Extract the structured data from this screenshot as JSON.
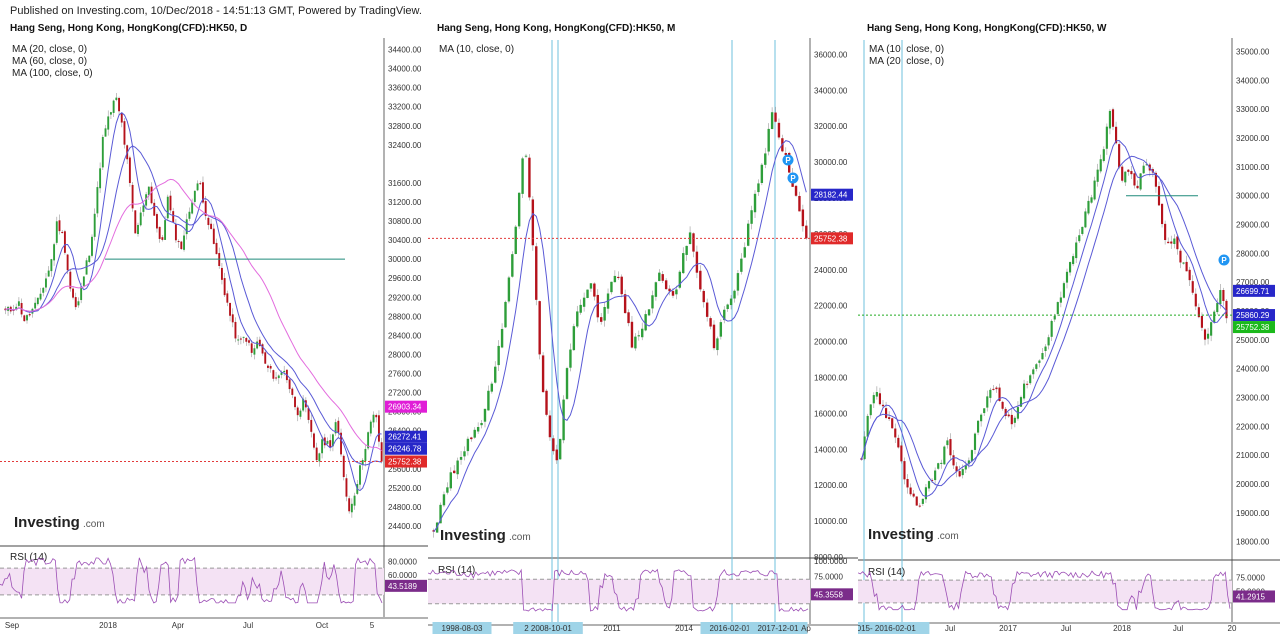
{
  "published": "Published on Investing.com, 10/Dec/2018 - 14:51:13 GMT, Powered by TradingView.",
  "brand": {
    "name": "Investing",
    "suffix": ".com"
  },
  "colors": {
    "up": "#2e9e3a",
    "down": "#b5121b",
    "ma_blue": "#5a5ad6",
    "ma_pink": "#e36cde",
    "rsi": "#9c4fb5",
    "rsi_band": "#f4e2f4",
    "price_line": "#e23a3a",
    "hline": "#1f8a7a",
    "vline": "#6fc0dc"
  },
  "chart_data": [
    {
      "type": "candlestick",
      "title": "Hang Seng, Hong Kong, HongKong(CFD):HK50, D",
      "legend": [
        "MA (20, close, 0)",
        "MA (60, close, 0)",
        "MA (100, close, 0)"
      ],
      "ylim": [
        24000,
        34600
      ],
      "yticks": [
        "34400.00",
        "34000.00",
        "33600.00",
        "33200.00",
        "32800.00",
        "32400.00",
        "31600.00",
        "31200.00",
        "30800.00",
        "30400.00",
        "30000.00",
        "29600.00",
        "29200.00",
        "28800.00",
        "28400.00",
        "28000.00",
        "27600.00",
        "27200.00",
        "26800.00",
        "26400.00",
        "25600.00",
        "25200.00",
        "24800.00",
        "24400.00"
      ],
      "xticks": [
        "Sep",
        "2018",
        "Apr",
        "Jul",
        "Oct",
        "5"
      ],
      "close_path": [
        28900,
        28950,
        29100,
        28700,
        28900,
        29100,
        29500,
        29900,
        30800,
        30400,
        29400,
        28900,
        29600,
        30200,
        31200,
        32500,
        33000,
        33400,
        32800,
        31800,
        30500,
        31000,
        31600,
        30900,
        30200,
        31300,
        30600,
        30200,
        30800,
        31400,
        31600,
        30900,
        30400,
        29800,
        29200,
        28600,
        28200,
        28400,
        28000,
        28300,
        27800,
        27600,
        27500,
        27700,
        27200,
        26800,
        27000,
        26400,
        25800,
        26200,
        26100,
        26600,
        25600,
        24700,
        25200,
        25800,
        26400,
        26800,
        25752
      ],
      "hline": 30000,
      "price_labels": [
        {
          "value": 26903.34,
          "label": "26903.34",
          "color": "#e01ed7"
        },
        {
          "value": 26272.41,
          "label": "26272.41",
          "color": "#2727c9"
        },
        {
          "value": 26246.78,
          "label": "26246.78",
          "color": "#2727c9"
        },
        {
          "value": 25752.38,
          "label": "25752.38",
          "color": "#e02a2a"
        }
      ],
      "rsi": {
        "label": "RSI (14)",
        "value": "43.5189",
        "upper": 70,
        "lower": 30,
        "ticks": [
          "80.0000",
          "60.0000"
        ]
      }
    },
    {
      "type": "candlestick",
      "title": "Hang Seng, Hong Kong, HongKong(CFD):HK50, M",
      "legend": [
        "MA (10, close, 0)"
      ],
      "ylim": [
        8000,
        36800
      ],
      "yticks": [
        "36000.00",
        "34000.00",
        "32000.00",
        "30000.00",
        "28000.00",
        "26000.00",
        "24000.00",
        "22000.00",
        "20000.00",
        "18000.00",
        "16000.00",
        "14000.00",
        "12000.00",
        "10000.00",
        "8000.00"
      ],
      "xticks": [
        "1998-08-03",
        "2 2008-10-01",
        "2011",
        "2014",
        "2016-02-01",
        "2017-12-01",
        "Ap"
      ],
      "close_path": [
        9500,
        11000,
        12500,
        13200,
        14500,
        15000,
        15800,
        17800,
        20000,
        23000,
        27000,
        31500,
        25000,
        18000,
        14500,
        13500,
        18000,
        21000,
        22500,
        23500,
        21000,
        22500,
        24000,
        22000,
        19800,
        20500,
        22000,
        23800,
        23000,
        22500,
        24500,
        26000,
        23500,
        21500,
        19500,
        21800,
        22500,
        24000,
        26500,
        28500,
        30500,
        33000,
        31000,
        29500,
        27500,
        25752
      ],
      "hline": 25752,
      "price_labels": [
        {
          "value": 28182.44,
          "label": "28182.44",
          "color": "#2727c9"
        },
        {
          "value": 25752.38,
          "label": "25752.38",
          "color": "#e02a2a"
        }
      ],
      "rsi": {
        "label": "RSI (14)",
        "value": "45.3558",
        "upper": 70,
        "lower": 30,
        "ticks": [
          "100.0000",
          "75.0000",
          "50.0000"
        ]
      }
    },
    {
      "type": "candlestick",
      "title": "Hang Seng, Hong Kong, HongKong(CFD):HK50, W",
      "legend": [
        "MA (10, close, 0)",
        "MA (20, close, 0)"
      ],
      "ylim": [
        17400,
        35400
      ],
      "yticks": [
        "35000.00",
        "34000.00",
        "33000.00",
        "32000.00",
        "31000.00",
        "30000.00",
        "29000.00",
        "28000.00",
        "27000.00",
        "26000.00",
        "25000.00",
        "24000.00",
        "23000.00",
        "22000.00",
        "21000.00",
        "20000.00",
        "19000.00",
        "18000.00"
      ],
      "xticks": [
        "2015- 2016-02-01",
        "Jul",
        "2017",
        "Jul",
        "2018",
        "Jul",
        "20"
      ],
      "close_path": [
        21000,
        22500,
        23200,
        22800,
        22300,
        21800,
        21000,
        19800,
        19500,
        19200,
        19800,
        20300,
        20700,
        21500,
        20800,
        20200,
        20500,
        21300,
        22200,
        22800,
        23600,
        23000,
        22500,
        22000,
        22800,
        23400,
        23700,
        24100,
        24600,
        25500,
        26200,
        26900,
        27700,
        28400,
        29100,
        29800,
        30600,
        31500,
        33000,
        31800,
        30500,
        31000,
        30200,
        30800,
        31200,
        30500,
        29000,
        28200,
        28500,
        27800,
        27200,
        26400,
        25500,
        25000,
        25800,
        26700,
        25752
      ],
      "hline": 25860,
      "price_labels": [
        {
          "value": 26699.71,
          "label": "26699.71",
          "color": "#2727c9"
        },
        {
          "value": 25860.29,
          "label": "25860.29",
          "color": "#2727c9"
        },
        {
          "value": 25752.38,
          "label": "25752.38",
          "color": "#1bb91b"
        }
      ],
      "rsi": {
        "label": "RSI (14)",
        "value": "41.2915",
        "upper": 70,
        "lower": 30,
        "ticks": [
          "75.0000",
          "50.0000"
        ]
      }
    }
  ]
}
